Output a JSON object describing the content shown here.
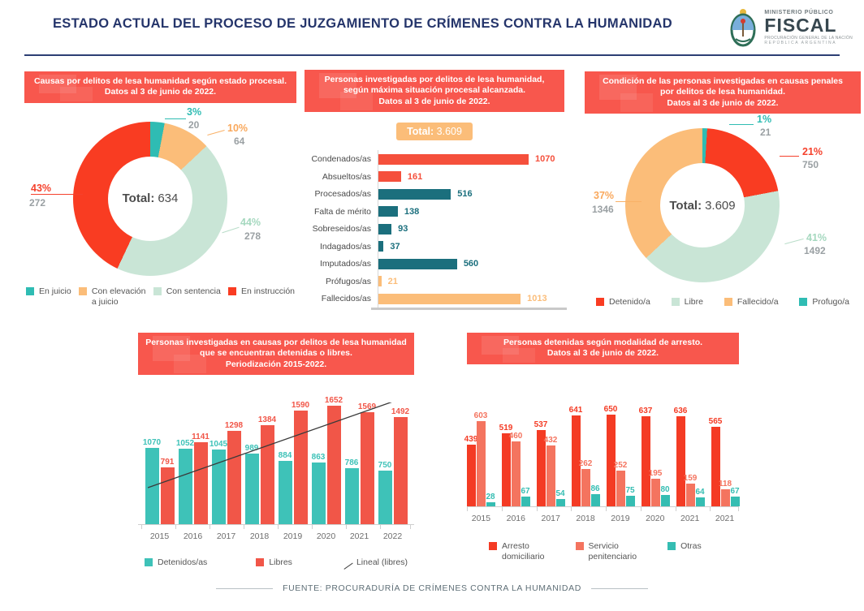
{
  "header": {
    "title": "ESTADO ACTUAL DEL PROCESO DE JUZGAMIENTO DE CRÍMENES CONTRA LA HUMANIDAD",
    "logo": {
      "ministry": "MINISTERIO PÚBLICO",
      "fiscal": "FISCAL",
      "sub1": "PROCURACIÓN GENERAL DE LA NACIÓN",
      "sub2": "REPÚBLICA ARGENTINA"
    }
  },
  "footer": {
    "source": "FUENTE: PROCURADURÍA DE CRÍMENES CONTRA LA HUMANIDAD"
  },
  "colors": {
    "banner_red": "#f8574d",
    "navy": "#25356b",
    "red": "#f5412c",
    "teal": "#2fbcb3",
    "light_green": "#c9e5d6",
    "orange": "#fbbd79",
    "dark_teal": "#1b6f7d",
    "salmon": "#f4745f"
  },
  "chart_data": [
    {
      "type": "pie",
      "title": "Causas por delitos de lesa humanidad según estado procesal.\nDatos al 3 de junio de 2022.",
      "total_label": "Total:",
      "total": "634",
      "slices": [
        {
          "label": "En juicio",
          "pct": "3%",
          "value": "20",
          "color": "#2fbcb3"
        },
        {
          "label": "Con elevación a juicio",
          "pct": "10%",
          "value": "64",
          "color": "#fbbd79"
        },
        {
          "label": "Con sentencia",
          "pct": "44%",
          "value": "278",
          "color": "#c9e5d6"
        },
        {
          "label": "En instrucción",
          "pct": "43%",
          "value": "272",
          "color": "#f93c22"
        }
      ],
      "legend": [
        {
          "label": "En juicio",
          "color": "#2fbcb3"
        },
        {
          "label": "Con elevación\na juicio",
          "color": "#fbbd79"
        },
        {
          "label": "Con sentencia",
          "color": "#c9e5d6"
        },
        {
          "label": "En instrucción",
          "color": "#f93c22"
        }
      ]
    },
    {
      "type": "bar",
      "orientation": "horizontal",
      "title": "Personas investigadas por delitos de lesa humanidad,\nsegún máxima situación procesal alcanzada.\nDatos al 3 de junio de 2022.",
      "total_label": "Total:",
      "total": "3.609",
      "categories": [
        "Condenados/as",
        "Absueltos/as",
        "Procesados/as",
        "Falta de mérito",
        "Sobreseidos/as",
        "Indagados/as",
        "Imputados/as",
        "Prófugos/as",
        "Fallecidos/as"
      ],
      "values": [
        1070,
        161,
        516,
        138,
        93,
        37,
        560,
        21,
        1013
      ],
      "colors": [
        "#f5503c",
        "#f5503c",
        "#1b6f7d",
        "#1b6f7d",
        "#1b6f7d",
        "#1b6f7d",
        "#1b6f7d",
        "#fbbd79",
        "#fbbd79"
      ],
      "xmax": 1070
    },
    {
      "type": "pie",
      "title": "Condición de las personas investigadas en causas penales\npor delitos de lesa humanidad.\nDatos al 3 de junio de 2022.",
      "total_label": "Total:",
      "total": "3.609",
      "slices": [
        {
          "label": "Profugo/a",
          "pct": "1%",
          "value": "21",
          "color": "#2fbcb3"
        },
        {
          "label": "Detenido/a",
          "pct": "21%",
          "value": "750",
          "color": "#f93c22"
        },
        {
          "label": "Libre",
          "pct": "41%",
          "value": "1492",
          "color": "#c9e5d6"
        },
        {
          "label": "Fallecido/a",
          "pct": "37%",
          "value": "1346",
          "color": "#fbbd79"
        }
      ],
      "legend": [
        {
          "label": "Detenido/a",
          "color": "#f93c22"
        },
        {
          "label": "Libre",
          "color": "#c9e5d6"
        },
        {
          "label": "Fallecido/a",
          "color": "#fbbd79"
        },
        {
          "label": "Profugo/a",
          "color": "#2fbcb3"
        }
      ]
    },
    {
      "type": "bar",
      "title": "Personas investigadas en causas por delitos de lesa humanidad\nque se encuentran detenidas o libres.\nPeriodización 2015-2022.",
      "categories": [
        "2015",
        "2016",
        "2017",
        "2018",
        "2019",
        "2020",
        "2021",
        "2022"
      ],
      "series": [
        {
          "name": "Detenidos/as",
          "color": "#3ec2b8",
          "values": [
            1070,
            1052,
            1045,
            989,
            884,
            863,
            786,
            750
          ]
        },
        {
          "name": "Libres",
          "color": "#f15648",
          "values": [
            791,
            1141,
            1298,
            1384,
            1590,
            1652,
            1569,
            1492
          ]
        }
      ],
      "trendline_label": "Lineal (libres)",
      "ymax": 1700,
      "legend": [
        {
          "label": "Detenidos/as",
          "color": "#3ec2b8"
        },
        {
          "label": "Libres",
          "color": "#f15648"
        },
        {
          "label": "Lineal (libres)",
          "type": "line"
        }
      ]
    },
    {
      "type": "bar",
      "title": "Personas detenidas según modalidad de arresto.\nDatos al 3 de junio de 2022.",
      "categories": [
        "2015",
        "2016",
        "2017",
        "2018",
        "2019",
        "2020",
        "2021",
        "2021"
      ],
      "series": [
        {
          "name": "Arresto domiciliario",
          "color": "#f43b24",
          "values": [
            439,
            519,
            537,
            641,
            650,
            637,
            636,
            565
          ]
        },
        {
          "name": "Servicio penitenciario",
          "color": "#f4745f",
          "values": [
            603,
            460,
            432,
            262,
            252,
            195,
            159,
            118
          ]
        },
        {
          "name": "Otras",
          "color": "#35bdb2",
          "values": [
            28,
            67,
            54,
            86,
            75,
            80,
            64,
            67
          ]
        }
      ],
      "ymax": 660,
      "legend": [
        {
          "label": "Arresto\ndomiciliario",
          "color": "#f43b24"
        },
        {
          "label": "Servicio\npenitenciario",
          "color": "#f4745f"
        },
        {
          "label": "Otras",
          "color": "#35bdb2"
        }
      ]
    }
  ]
}
